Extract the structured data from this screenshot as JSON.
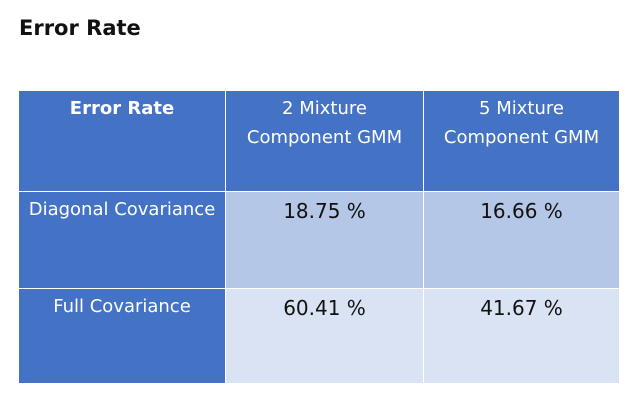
{
  "title": "Error Rate",
  "table": {
    "header": {
      "corner": "Error Rate",
      "columns": [
        "2 Mixture Component GMM",
        "5 Mixture Component GMM"
      ]
    },
    "rows": [
      {
        "label": "Diagonal Covariance",
        "values": [
          "18.75 %",
          "16.66 %"
        ]
      },
      {
        "label": "Full Covariance",
        "values": [
          "60.41 %",
          "41.67 %"
        ]
      }
    ]
  },
  "colors": {
    "header_blue": "#4472c4",
    "row1_fill": "#b4c7e7",
    "row2_fill": "#dae3f3"
  }
}
